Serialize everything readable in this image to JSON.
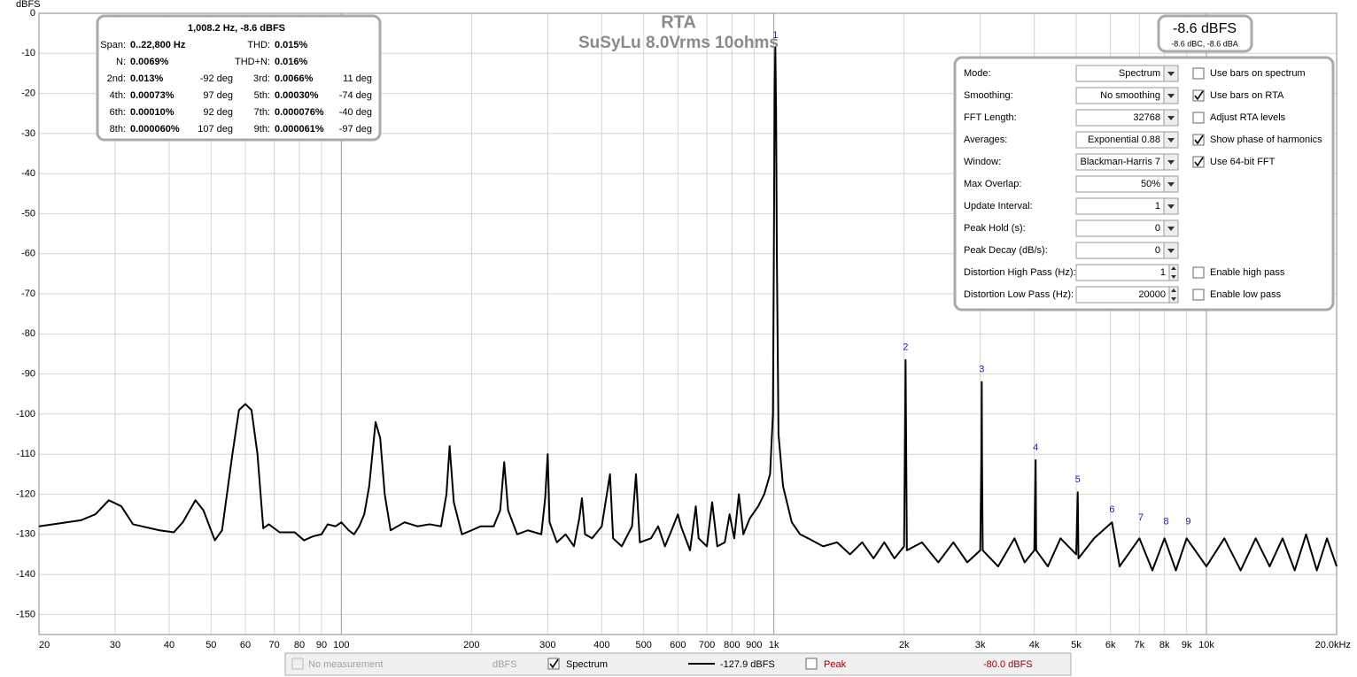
{
  "chart_data": {
    "type": "line",
    "title": "RTA",
    "subtitle": "SuSyLu 8.0Vrms 10ohms",
    "y_label": "dBFS",
    "xscale": "log",
    "grid": true,
    "xlim": [
      20,
      20000
    ],
    "ylim": [
      -155,
      0
    ],
    "xticks": [
      20,
      30,
      40,
      50,
      60,
      70,
      80,
      90,
      100,
      200,
      300,
      400,
      500,
      600,
      700,
      800,
      900,
      {
        "value": 1000,
        "label": "1k"
      },
      {
        "value": 2000,
        "label": "2k"
      },
      {
        "value": 3000,
        "label": "3k"
      },
      {
        "value": 4000,
        "label": "4k"
      },
      {
        "value": 5000,
        "label": "5k"
      },
      {
        "value": 6000,
        "label": "6k"
      },
      {
        "value": 7000,
        "label": "7k"
      },
      {
        "value": 8000,
        "label": "8k"
      },
      {
        "value": 9000,
        "label": "9k"
      },
      {
        "value": 10000,
        "label": "10k"
      },
      {
        "value": 20000,
        "label": "20.0kHz"
      }
    ],
    "yticks": [
      0,
      -10,
      -20,
      -30,
      -40,
      -50,
      -60,
      -70,
      -80,
      -90,
      -100,
      -110,
      -120,
      -130,
      -140,
      -150
    ],
    "x": [
      20,
      25,
      27,
      29,
      31,
      33,
      38,
      41,
      43,
      46,
      48,
      51,
      53,
      56,
      58,
      60,
      62,
      64,
      66,
      68,
      72,
      78,
      82,
      86,
      90,
      93,
      97,
      100,
      104,
      107,
      110,
      113,
      116,
      120,
      123,
      126,
      130,
      140,
      150,
      160,
      170,
      175,
      178,
      182,
      190,
      200,
      210,
      225,
      233,
      238,
      243,
      255,
      270,
      290,
      296,
      300,
      303,
      315,
      330,
      345,
      355,
      360,
      366,
      380,
      400,
      418,
      425,
      445,
      470,
      480,
      490,
      520,
      540,
      560,
      580,
      600,
      610,
      640,
      660,
      670,
      700,
      720,
      740,
      770,
      790,
      810,
      830,
      850,
      880,
      920,
      950,
      980,
      995,
      1000,
      1004,
      1008,
      1012,
      1016,
      1025,
      1050,
      1100,
      1150,
      1200,
      1300,
      1400,
      1500,
      1600,
      1700,
      1800,
      1900,
      2000,
      2012,
      2016,
      2020,
      2030,
      2200,
      2400,
      2600,
      2800,
      3000,
      3020,
      3024,
      3028,
      3040,
      3300,
      3600,
      3800,
      4000,
      4029,
      4040,
      4300,
      4600,
      5000,
      5041,
      5060,
      5500,
      6049,
      6300,
      7000,
      7500,
      8000,
      8500,
      9000,
      10000,
      11000,
      12000,
      13000,
      14000,
      15000,
      16000,
      17000,
      18000,
      19000,
      20000
    ],
    "series": [
      {
        "name": "Spectrum",
        "color": "#000000",
        "values": [
          -128,
          -126.5,
          -125,
          -121.5,
          -123,
          -127.5,
          -129,
          -129.5,
          -127,
          -121.5,
          -124,
          -131.5,
          -129,
          -110,
          -99,
          -97.5,
          -99,
          -110,
          -128.5,
          -127.5,
          -129.5,
          -129.5,
          -131.5,
          -130.5,
          -130,
          -127.5,
          -128,
          -127,
          -129,
          -130,
          -128,
          -125,
          -118,
          -102,
          -106,
          -120,
          -129,
          -127,
          -128,
          -127.5,
          -128,
          -120,
          -108,
          -122,
          -130,
          -129,
          -128,
          -128,
          -124,
          -112,
          -124,
          -130,
          -129,
          -130,
          -121,
          -110,
          -127,
          -132,
          -130,
          -133,
          -126,
          -121,
          -130,
          -131,
          -128,
          -115,
          -131,
          -133,
          -128,
          -115,
          -132,
          -131,
          -128,
          -133,
          -129,
          -125,
          -128,
          -134,
          -123,
          -131,
          -133,
          -122,
          -133,
          -132,
          -125,
          -131,
          -120,
          -130,
          -126,
          -123,
          -120,
          -115,
          -100,
          -60,
          -20,
          -8.6,
          -25,
          -60,
          -105,
          -118,
          -127,
          -130,
          -131,
          -133,
          -132,
          -135,
          -132,
          -136,
          -132,
          -136,
          -133,
          -100,
          -86.5,
          -100,
          -134,
          -132,
          -137,
          -132,
          -137,
          -134,
          -110,
          -92,
          -110,
          -134,
          -138,
          -131,
          -137,
          -134,
          -111.5,
          -134,
          -138,
          -131,
          -135,
          -119.5,
          -136,
          -131,
          -127,
          -138,
          -131,
          -139,
          -131,
          -139,
          -131,
          -138,
          -131,
          -139,
          -131,
          -138,
          -131,
          -139,
          -130,
          -139,
          -131,
          -138
        ]
      }
    ],
    "annotations": [
      {
        "label": "1",
        "x": 1008.2,
        "y": -8.6
      },
      {
        "label": "2",
        "x": 2016,
        "y": -86.5
      },
      {
        "label": "3",
        "x": 3024,
        "y": -92
      },
      {
        "label": "4",
        "x": 4029,
        "y": -111.5
      },
      {
        "label": "5",
        "x": 5041,
        "y": -119.5
      },
      {
        "label": "6",
        "x": 6049,
        "y": -127
      },
      {
        "label": "7",
        "x": 7057,
        "y": -129
      },
      {
        "label": "8",
        "x": 8066,
        "y": -130
      },
      {
        "label": "9",
        "x": 9074,
        "y": -130
      }
    ]
  },
  "info_box": {
    "header": "1,008.2 Hz, -8.6 dBFS",
    "rows": [
      [
        "Span:",
        "0..22,800 Hz",
        "THD:",
        "0.015%"
      ],
      [
        "N:",
        "0.0069%",
        "THD+N:",
        "0.016%"
      ],
      [
        "2nd:",
        "0.013%",
        "-92 deg",
        "3rd:",
        "0.0066%",
        "11 deg"
      ],
      [
        "4th:",
        "0.00073%",
        "97 deg",
        "5th:",
        "0.00030%",
        "-74 deg"
      ],
      [
        "6th:",
        "0.00010%",
        "92 deg",
        "7th:",
        "0.000076%",
        "-40 deg"
      ],
      [
        "8th:",
        "0.000060%",
        "107 deg",
        "9th:",
        "0.000061%",
        "-97 deg"
      ]
    ]
  },
  "readout": {
    "main": "-8.6 dBFS",
    "sub": "-8.6 dBC, -8.6 dBA"
  },
  "settings": {
    "fields": [
      {
        "label": "Mode:",
        "value": "Spectrum",
        "kind": "select"
      },
      {
        "label": "Smoothing:",
        "value": "No  smoothing",
        "kind": "select"
      },
      {
        "label": "FFT Length:",
        "value": "32768",
        "kind": "select"
      },
      {
        "label": "Averages:",
        "value": "Exponential 0.88",
        "kind": "select"
      },
      {
        "label": "Window:",
        "value": "Blackman-Harris 7",
        "kind": "select"
      },
      {
        "label": "Max Overlap:",
        "value": "50%",
        "kind": "select"
      },
      {
        "label": "Update Interval:",
        "value": "1",
        "kind": "select"
      },
      {
        "label": "Peak Hold (s):",
        "value": "0",
        "kind": "select"
      },
      {
        "label": "Peak Decay (dB/s):",
        "value": "0",
        "kind": "select"
      },
      {
        "label": "Distortion High Pass (Hz):",
        "value": "1",
        "kind": "spin"
      },
      {
        "label": "Distortion Low Pass (Hz):",
        "value": "20000",
        "kind": "spin"
      }
    ],
    "checkboxes": [
      {
        "label": "Use bars on spectrum",
        "checked": false,
        "row": 0
      },
      {
        "label": "Use bars on RTA",
        "checked": true,
        "row": 1
      },
      {
        "label": "Adjust RTA levels",
        "checked": false,
        "row": 2
      },
      {
        "label": "Show phase of harmonics",
        "checked": true,
        "row": 3
      },
      {
        "label": "Use 64-bit FFT",
        "checked": true,
        "row": 4
      },
      {
        "label": "Enable high pass",
        "checked": false,
        "row": 9
      },
      {
        "label": "Enable low pass",
        "checked": false,
        "row": 10
      }
    ]
  },
  "legend_bar": {
    "no_measurement": "No measurement",
    "no_measurement_unit": "dBFS",
    "spectrum_value": "-127.9 dBFS",
    "peak": "Peak",
    "peak_value": "-80.0 dBFS"
  }
}
